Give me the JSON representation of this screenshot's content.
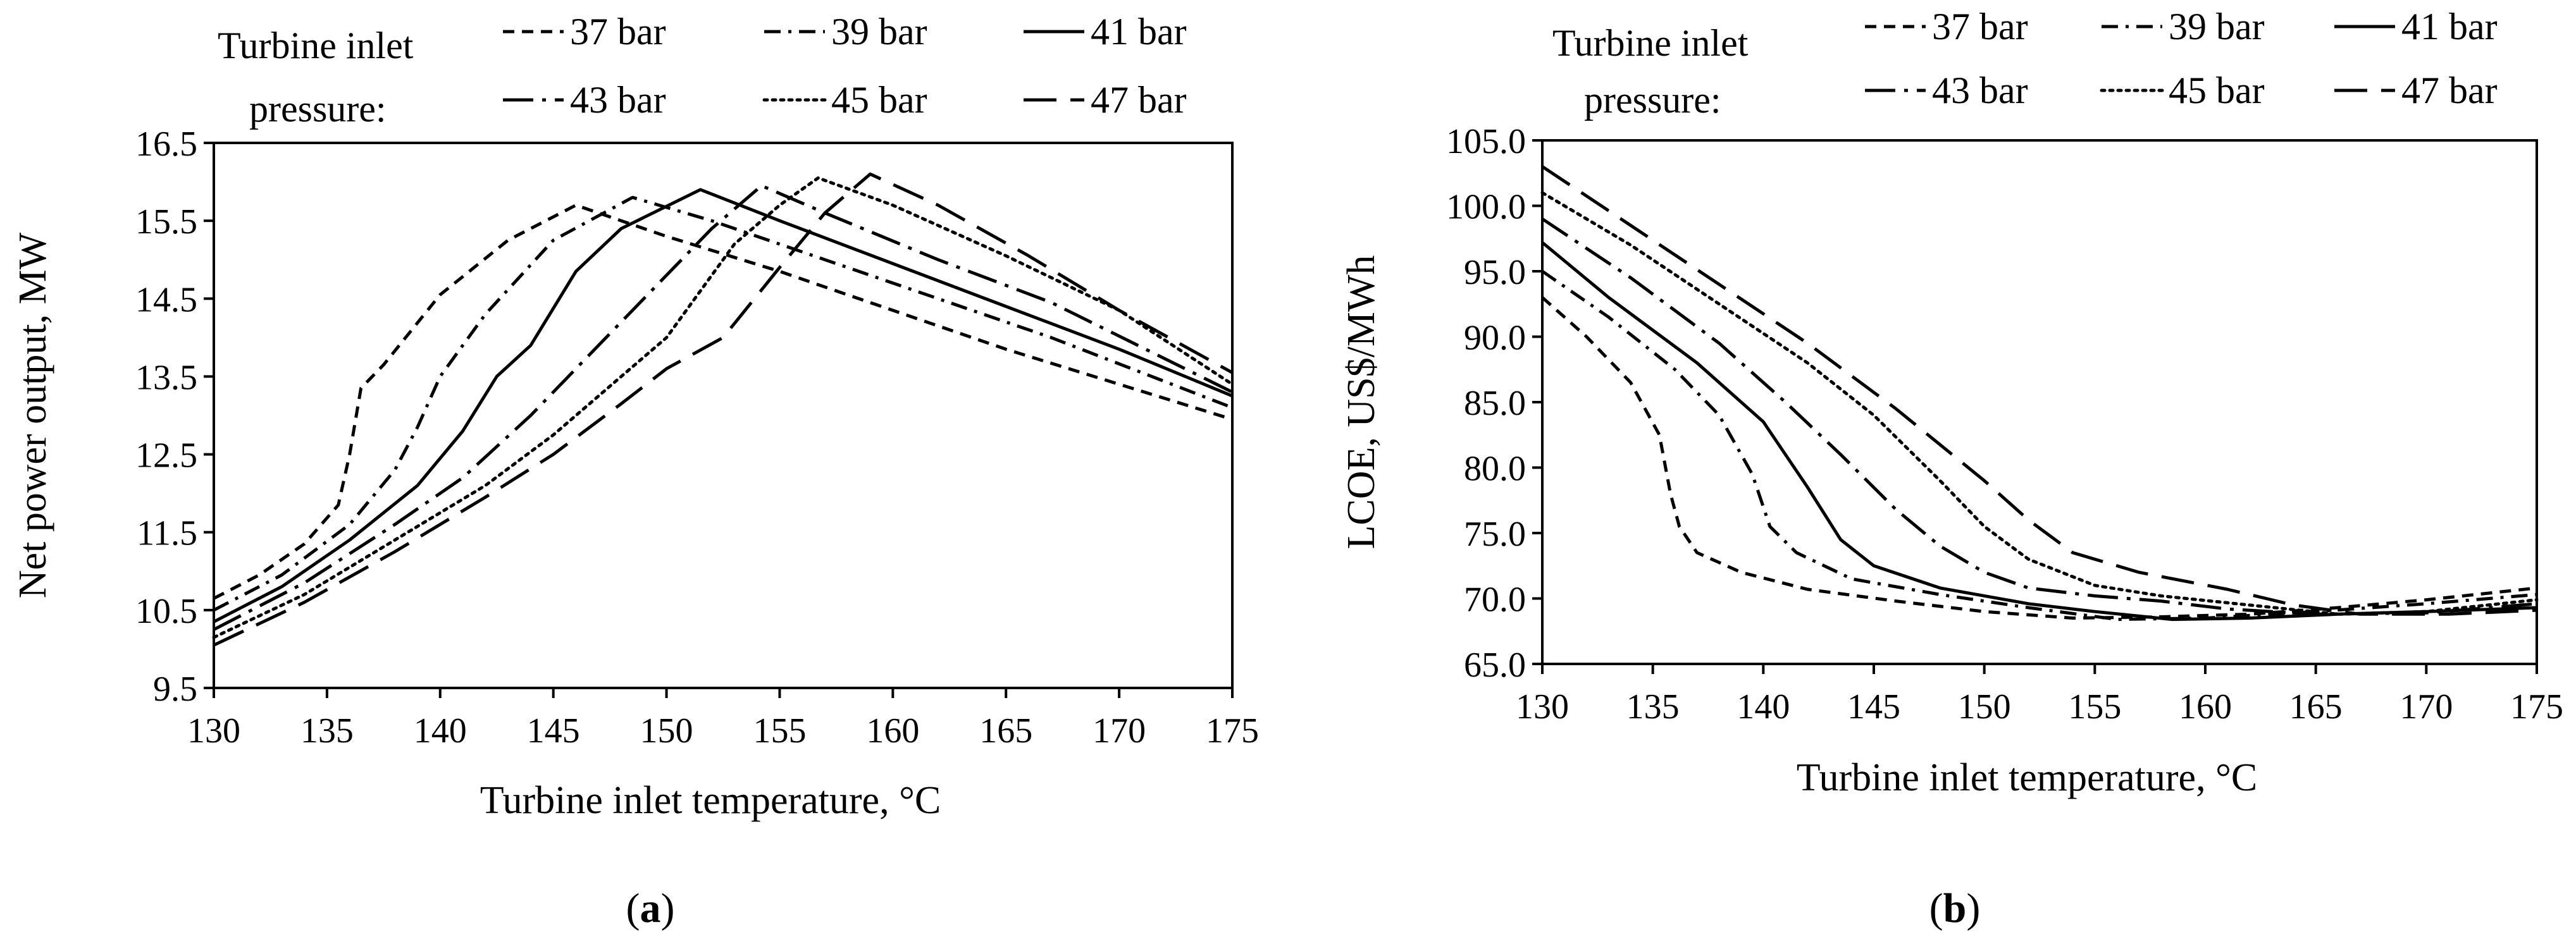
{
  "chart_data": [
    {
      "type": "line",
      "panel_label": "(a)",
      "panel_letter": "a",
      "xlabel": "Turbine inlet temperature, °C",
      "ylabel": "Net power output, MW",
      "xlim": [
        130,
        175
      ],
      "ylim": [
        9.5,
        16.5
      ],
      "xticks": [
        "130",
        "135",
        "140",
        "145",
        "150",
        "155",
        "160",
        "165",
        "170",
        "175"
      ],
      "yticks": [
        "9.5",
        "10.5",
        "11.5",
        "12.5",
        "13.5",
        "14.5",
        "15.5",
        "16.5"
      ],
      "legend_title_line1": "Turbine inlet",
      "legend_title_line2": "pressure:",
      "series": [
        {
          "name": "37 bar",
          "dash": "short-dash",
          "x": [
            130,
            132,
            134,
            135.5,
            136,
            136.5,
            137.5,
            140,
            143,
            146,
            150,
            155,
            160,
            165,
            170,
            175
          ],
          "y": [
            10.65,
            10.95,
            11.35,
            11.85,
            12.5,
            13.35,
            13.65,
            14.55,
            15.25,
            15.7,
            15.3,
            14.85,
            14.35,
            13.85,
            13.4,
            12.95
          ]
        },
        {
          "name": "39 bar",
          "dash": "dash-dot",
          "x": [
            130,
            133,
            136,
            138,
            139,
            140,
            142,
            145,
            148.5,
            152,
            157,
            162,
            167,
            175
          ],
          "y": [
            10.5,
            10.95,
            11.6,
            12.3,
            12.85,
            13.5,
            14.3,
            15.25,
            15.8,
            15.5,
            15.0,
            14.5,
            14.0,
            13.1
          ]
        },
        {
          "name": "41 bar",
          "dash": "solid",
          "x": [
            130,
            133,
            136,
            139,
            141,
            142.5,
            144,
            146,
            148,
            151.5,
            155,
            160,
            165,
            170,
            175
          ],
          "y": [
            10.35,
            10.8,
            11.4,
            12.1,
            12.8,
            13.5,
            13.9,
            14.85,
            15.4,
            15.9,
            15.5,
            14.95,
            14.4,
            13.85,
            13.25
          ]
        },
        {
          "name": "43 bar",
          "dash": "long-dash-dot",
          "x": [
            130,
            134,
            138,
            141,
            144,
            146,
            148,
            150,
            152,
            154.2,
            157,
            162,
            167,
            175
          ],
          "y": [
            10.25,
            10.85,
            11.6,
            12.2,
            13.0,
            13.6,
            14.2,
            14.8,
            15.4,
            15.95,
            15.6,
            15.0,
            14.45,
            13.3
          ]
        },
        {
          "name": "45 bar",
          "dash": "dotted",
          "x": [
            130,
            134,
            138,
            142,
            145,
            148,
            150,
            151.5,
            153,
            155,
            156.7,
            160,
            165,
            170,
            175
          ],
          "y": [
            10.15,
            10.7,
            11.4,
            12.1,
            12.75,
            13.5,
            14.0,
            14.6,
            15.2,
            15.7,
            16.05,
            15.7,
            15.05,
            14.35,
            13.4
          ]
        },
        {
          "name": "47 bar",
          "dash": "long-dash",
          "x": [
            130,
            134,
            138,
            142,
            145,
            148,
            150,
            152.5,
            155,
            157,
            159,
            162,
            166,
            170,
            175
          ],
          "y": [
            10.05,
            10.6,
            11.25,
            11.95,
            12.5,
            13.15,
            13.6,
            14.0,
            14.9,
            15.6,
            16.1,
            15.7,
            15.05,
            14.35,
            13.55
          ]
        }
      ]
    },
    {
      "type": "line",
      "panel_label": "(b)",
      "panel_letter": "b",
      "xlabel": "Turbine inlet temperature, °C",
      "ylabel": "LCOE, US$/MWh",
      "xlim": [
        130,
        175
      ],
      "ylim": [
        65,
        105
      ],
      "xticks": [
        "130",
        "135",
        "140",
        "145",
        "150",
        "155",
        "160",
        "165",
        "170",
        "175"
      ],
      "yticks": [
        "65.0",
        "70.0",
        "75.0",
        "80.0",
        "85.0",
        "90.0",
        "95.0",
        "100.0",
        "105.0"
      ],
      "legend_title_line1": "Turbine inlet",
      "legend_title_line2": "pressure:",
      "series": [
        {
          "name": "37 bar",
          "dash": "short-dash",
          "x": [
            130,
            132,
            134,
            135.3,
            135.8,
            136.2,
            137,
            139,
            142,
            146,
            150,
            154,
            158,
            162,
            166,
            170,
            175
          ],
          "y": [
            93.0,
            90.0,
            86.5,
            82.5,
            78.0,
            75.5,
            73.5,
            72.0,
            70.7,
            69.8,
            69.0,
            68.5,
            68.6,
            68.8,
            69.3,
            69.9,
            70.8
          ]
        },
        {
          "name": "39 bar",
          "dash": "dash-dot",
          "x": [
            130,
            133,
            136,
            138,
            139.5,
            140.3,
            141.5,
            144,
            148,
            152,
            156,
            160,
            165,
            170,
            175
          ],
          "y": [
            95.0,
            91.5,
            87.5,
            84.0,
            79.5,
            75.5,
            73.5,
            71.5,
            70.3,
            69.3,
            68.4,
            68.5,
            69.0,
            69.6,
            70.3
          ]
        },
        {
          "name": "41 bar",
          "dash": "solid",
          "x": [
            130,
            133,
            137,
            140,
            142,
            143.5,
            145,
            148,
            152,
            155,
            158.5,
            162,
            166,
            170,
            175
          ],
          "y": [
            97.2,
            93.0,
            88.0,
            83.5,
            78.5,
            74.5,
            72.5,
            70.8,
            69.6,
            69.0,
            68.4,
            68.5,
            68.8,
            69.0,
            69.3
          ]
        },
        {
          "name": "43 bar",
          "dash": "long-dash-dot",
          "x": [
            130,
            134,
            138,
            141,
            143.5,
            146,
            148,
            150,
            152,
            155,
            158,
            161,
            165,
            170,
            175
          ],
          "y": [
            99.0,
            94.5,
            89.5,
            85.0,
            81.0,
            76.8,
            74.0,
            72.0,
            70.8,
            70.2,
            69.8,
            69.2,
            68.8,
            68.9,
            69.6
          ]
        },
        {
          "name": "45 bar",
          "dash": "dotted",
          "x": [
            130,
            134,
            138,
            142,
            145,
            148,
            150,
            152,
            155,
            158,
            162,
            166,
            170,
            175
          ],
          "y": [
            101.0,
            97.0,
            92.5,
            88.0,
            84.0,
            79.0,
            75.5,
            73.0,
            71.0,
            70.2,
            69.5,
            68.8,
            69.0,
            69.9
          ]
        },
        {
          "name": "47 bar",
          "dash": "long-dash",
          "x": [
            130,
            134,
            138,
            142,
            146,
            150,
            152,
            154,
            157,
            161,
            164,
            167,
            171,
            175
          ],
          "y": [
            103.0,
            98.5,
            94.0,
            89.5,
            84.5,
            79.0,
            76.0,
            73.5,
            72.0,
            70.7,
            69.5,
            68.8,
            68.8,
            69.1
          ]
        }
      ]
    }
  ]
}
